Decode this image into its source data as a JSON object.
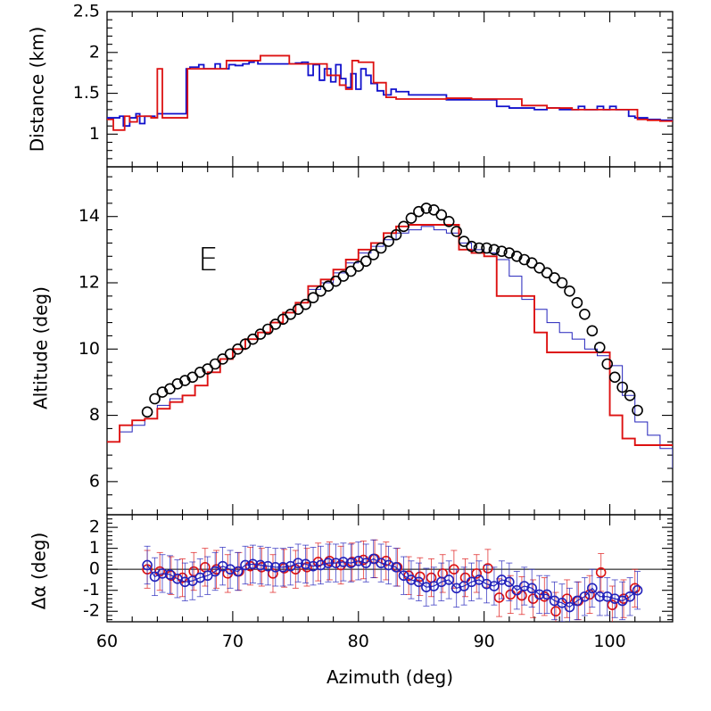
{
  "chart_data": [
    {
      "type": "line",
      "panel": "top",
      "ylabel": "Distance (km)",
      "xlim": [
        60,
        105
      ],
      "ylim": [
        0.6,
        2.5
      ],
      "yticks": [
        "1",
        "1.5",
        "2",
        "2.5"
      ],
      "colors": {
        "blue": "#1010cc",
        "red": "#dd1111"
      },
      "series": [
        {
          "name": "blue",
          "x": [
            60,
            61,
            61.3,
            61.8,
            62.3,
            62.6,
            63,
            63.8,
            64,
            64.6,
            65,
            65.6,
            66,
            66.3,
            66.6,
            67.3,
            67.7,
            68.6,
            69,
            69.7,
            70.2,
            70.8,
            71.3,
            71.7,
            72,
            72.6,
            73,
            74,
            75,
            75.5,
            76,
            76.4,
            76.9,
            77.3,
            77.8,
            78.2,
            78.6,
            79,
            79.4,
            79.8,
            80.2,
            80.6,
            81,
            81.5,
            82,
            82.6,
            83,
            84,
            85,
            86,
            87,
            88,
            89,
            90,
            91,
            92,
            93,
            94,
            95,
            96,
            96.5,
            97,
            97.5,
            98,
            98.5,
            99,
            99.5,
            100,
            100.5,
            101,
            101.5,
            102,
            103,
            104,
            105
          ],
          "y": [
            1.2,
            1.22,
            1.1,
            1.2,
            1.25,
            1.13,
            1.22,
            1.2,
            1.25,
            1.25,
            1.25,
            1.25,
            1.25,
            1.8,
            1.82,
            1.85,
            1.8,
            1.86,
            1.8,
            1.85,
            1.84,
            1.86,
            1.88,
            1.9,
            1.86,
            1.86,
            1.86,
            1.86,
            1.87,
            1.88,
            1.72,
            1.85,
            1.66,
            1.8,
            1.64,
            1.85,
            1.68,
            1.57,
            1.74,
            1.55,
            1.8,
            1.72,
            1.62,
            1.53,
            1.48,
            1.55,
            1.52,
            1.48,
            1.48,
            1.48,
            1.42,
            1.42,
            1.42,
            1.42,
            1.34,
            1.32,
            1.32,
            1.3,
            1.32,
            1.3,
            1.3,
            1.3,
            1.34,
            1.3,
            1.3,
            1.34,
            1.3,
            1.34,
            1.3,
            1.3,
            1.22,
            1.2,
            1.18,
            1.17,
            1.17
          ]
        },
        {
          "name": "red",
          "x": [
            60,
            60.5,
            61.4,
            61.8,
            62.4,
            63.5,
            64,
            64.4,
            64.8,
            65.2,
            66.4,
            66.8,
            68.5,
            69.5,
            72.2,
            74.5,
            75.3,
            76.3,
            77.5,
            78.5,
            79,
            79.5,
            80,
            81.2,
            82.2,
            83,
            85,
            87,
            89,
            91,
            93,
            95,
            97,
            99,
            101,
            102.2,
            103,
            104,
            105
          ],
          "y": [
            1.18,
            1.05,
            1.22,
            1.15,
            1.22,
            1.2,
            1.8,
            1.2,
            1.2,
            1.2,
            1.8,
            1.8,
            1.8,
            1.9,
            1.96,
            1.86,
            1.86,
            1.86,
            1.72,
            1.6,
            1.55,
            1.9,
            1.88,
            1.63,
            1.45,
            1.43,
            1.43,
            1.44,
            1.43,
            1.43,
            1.35,
            1.32,
            1.3,
            1.3,
            1.3,
            1.18,
            1.17,
            1.16,
            1.16
          ]
        }
      ]
    },
    {
      "type": "scatter",
      "panel": "middle",
      "ylabel": "Altitude (deg)",
      "annotation": "E",
      "xlim": [
        60,
        105
      ],
      "ylim": [
        5.0,
        15.5
      ],
      "yticks": [
        "6",
        "8",
        "10",
        "12",
        "14"
      ],
      "colors": {
        "blue": "#2222bb",
        "red": "#dd1111",
        "points": "#000000"
      },
      "series": [
        {
          "name": "blue-line",
          "x": [
            60,
            61,
            62,
            63,
            64,
            65,
            66,
            67,
            68,
            69,
            70,
            71,
            72,
            73,
            74,
            75,
            76,
            77,
            78,
            79,
            80,
            81,
            82,
            83,
            84,
            85,
            86,
            87,
            88,
            89,
            90,
            91,
            92,
            93,
            94,
            95,
            96,
            97,
            98,
            99,
            100,
            101,
            102,
            103,
            104,
            105
          ],
          "y": [
            7.2,
            7.5,
            7.7,
            7.9,
            8.3,
            8.5,
            8.6,
            8.9,
            9.3,
            9.7,
            10.0,
            10.3,
            10.5,
            10.8,
            11.1,
            11.4,
            11.8,
            12.0,
            12.3,
            12.6,
            12.9,
            13.1,
            13.3,
            13.5,
            13.6,
            13.7,
            13.6,
            13.5,
            13.2,
            13.0,
            12.9,
            12.7,
            12.2,
            11.5,
            11.2,
            10.8,
            10.5,
            10.3,
            10.0,
            9.8,
            9.5,
            8.6,
            7.8,
            7.4,
            7.0,
            6.4
          ]
        },
        {
          "name": "red-line",
          "x": [
            60,
            61,
            62,
            63,
            64,
            65,
            66,
            67,
            68,
            69,
            70,
            71,
            72,
            73,
            74,
            75,
            76,
            77,
            78,
            79,
            80,
            81,
            82,
            83,
            84,
            85,
            86,
            87,
            88,
            89,
            90,
            91,
            92,
            93,
            94,
            95,
            96,
            97,
            98,
            99,
            100,
            101,
            102,
            103,
            104,
            105
          ],
          "y": [
            7.2,
            7.7,
            7.85,
            7.9,
            8.2,
            8.4,
            8.6,
            8.9,
            9.3,
            9.7,
            10.0,
            10.3,
            10.5,
            10.8,
            11.1,
            11.4,
            11.9,
            12.1,
            12.4,
            12.7,
            13.0,
            13.2,
            13.5,
            13.7,
            13.75,
            13.75,
            13.75,
            13.75,
            13.0,
            12.9,
            12.8,
            11.6,
            11.6,
            11.6,
            10.5,
            9.9,
            9.9,
            9.9,
            9.9,
            9.9,
            8.0,
            7.3,
            7.1,
            7.1,
            7.1,
            7.1
          ]
        },
        {
          "name": "circles",
          "x": [
            63.2,
            63.8,
            64.4,
            65.0,
            65.6,
            66.2,
            66.8,
            67.4,
            68.0,
            68.6,
            69.2,
            69.8,
            70.4,
            71.0,
            71.6,
            72.2,
            72.8,
            73.4,
            74.0,
            74.6,
            75.2,
            75.8,
            76.4,
            77.0,
            77.6,
            78.2,
            78.8,
            79.4,
            80.0,
            80.6,
            81.2,
            81.8,
            82.4,
            83.0,
            83.6,
            84.2,
            84.8,
            85.4,
            86.0,
            86.6,
            87.2,
            87.8,
            88.4,
            89.0,
            89.6,
            90.2,
            90.8,
            91.4,
            92.0,
            92.6,
            93.2,
            93.8,
            94.4,
            95.0,
            95.6,
            96.2,
            96.8,
            97.4,
            98.0,
            98.6,
            99.2,
            99.8,
            100.4,
            101.0,
            101.6,
            102.2
          ],
          "y": [
            8.1,
            8.5,
            8.7,
            8.8,
            8.95,
            9.05,
            9.15,
            9.3,
            9.4,
            9.55,
            9.7,
            9.85,
            10.0,
            10.15,
            10.3,
            10.45,
            10.6,
            10.75,
            10.9,
            11.05,
            11.2,
            11.35,
            11.55,
            11.75,
            11.9,
            12.05,
            12.2,
            12.35,
            12.5,
            12.65,
            12.85,
            13.05,
            13.25,
            13.45,
            13.7,
            13.95,
            14.15,
            14.25,
            14.2,
            14.05,
            13.85,
            13.55,
            13.25,
            13.1,
            13.05,
            13.05,
            13.0,
            12.95,
            12.9,
            12.8,
            12.7,
            12.6,
            12.45,
            12.3,
            12.15,
            12.0,
            11.75,
            11.4,
            11.05,
            10.55,
            10.05,
            9.55,
            9.15,
            8.85,
            8.6,
            8.15
          ]
        }
      ]
    },
    {
      "type": "scatter",
      "panel": "bottom",
      "ylabel": "Δα (deg)",
      "xlabel": "Azimuth (deg)",
      "xlim": [
        60,
        105
      ],
      "ylim": [
        -2.5,
        2.6
      ],
      "yticks": [
        "-2",
        "-1",
        "0",
        "1",
        "2"
      ],
      "xticks": [
        "60",
        "70",
        "80",
        "90",
        "100"
      ],
      "error_bar": 0.9,
      "colors": {
        "blue": "#2222bb",
        "red": "#dd1111"
      },
      "series": [
        {
          "name": "blue",
          "x": [
            63.2,
            63.8,
            64.4,
            65.0,
            65.6,
            66.2,
            66.8,
            67.4,
            68.0,
            68.6,
            69.2,
            69.8,
            70.4,
            71.0,
            71.6,
            72.2,
            72.8,
            73.4,
            74.0,
            74.6,
            75.2,
            75.8,
            76.4,
            77.0,
            77.6,
            78.2,
            78.8,
            79.4,
            80.0,
            80.6,
            81.2,
            81.8,
            82.4,
            83.0,
            83.6,
            84.2,
            84.8,
            85.4,
            86.0,
            86.6,
            87.2,
            87.8,
            88.4,
            89.0,
            89.6,
            90.2,
            90.8,
            91.4,
            92.0,
            92.6,
            93.2,
            93.8,
            94.4,
            95.0,
            95.6,
            96.2,
            96.8,
            97.4,
            98.0,
            98.6,
            99.2,
            99.8,
            100.4,
            101.0,
            101.6,
            102.2
          ],
          "y": [
            0.2,
            -0.35,
            -0.2,
            -0.25,
            -0.45,
            -0.6,
            -0.55,
            -0.4,
            -0.3,
            -0.1,
            0.15,
            0.0,
            -0.1,
            0.2,
            0.25,
            0.2,
            0.15,
            0.1,
            0.1,
            0.15,
            0.3,
            0.25,
            0.15,
            0.2,
            0.3,
            0.3,
            0.35,
            0.3,
            0.4,
            0.3,
            0.5,
            0.3,
            0.2,
            0.1,
            -0.3,
            -0.5,
            -0.6,
            -0.85,
            -0.8,
            -0.6,
            -0.5,
            -0.9,
            -0.8,
            -0.6,
            -0.5,
            -0.7,
            -0.8,
            -0.5,
            -0.6,
            -1.0,
            -0.8,
            -0.9,
            -1.2,
            -1.2,
            -1.5,
            -1.6,
            -1.8,
            -1.5,
            -1.3,
            -0.9,
            -1.3,
            -1.3,
            -1.4,
            -1.5,
            -1.3,
            -1.0
          ]
        },
        {
          "name": "red",
          "x": [
            63.2,
            64.2,
            65.1,
            66.0,
            66.9,
            67.8,
            68.7,
            69.6,
            70.5,
            71.4,
            72.3,
            73.2,
            74.1,
            75.0,
            75.9,
            76.8,
            77.7,
            78.6,
            79.5,
            80.4,
            81.3,
            82.2,
            83.1,
            84.0,
            84.9,
            85.8,
            86.7,
            87.6,
            88.5,
            89.4,
            90.3,
            91.2,
            92.1,
            93.0,
            93.9,
            94.8,
            95.7,
            96.6,
            97.5,
            98.4,
            99.3,
            100.2,
            101.1,
            102.0
          ],
          "y": [
            0.0,
            -0.1,
            -0.3,
            -0.4,
            -0.1,
            0.1,
            0.0,
            -0.2,
            -0.1,
            0.15,
            0.1,
            -0.2,
            0.05,
            0.0,
            0.1,
            0.35,
            0.4,
            0.2,
            0.35,
            0.45,
            0.5,
            0.4,
            0.1,
            -0.3,
            -0.35,
            -0.4,
            -0.2,
            0.0,
            -0.4,
            -0.2,
            0.05,
            -1.35,
            -1.2,
            -1.25,
            -1.4,
            -1.3,
            -2.0,
            -1.4,
            -1.5,
            -1.2,
            -0.15,
            -1.7,
            -1.4,
            -0.9
          ]
        }
      ]
    }
  ]
}
